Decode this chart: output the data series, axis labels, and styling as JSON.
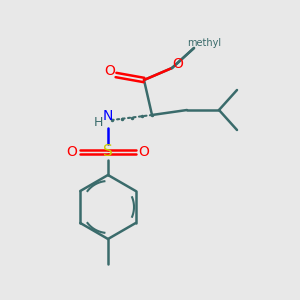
{
  "background_color": "#e8e8e8",
  "bond_color": "#3a6b6b",
  "atom_colors": {
    "O": "#ff0000",
    "N": "#0000ff",
    "S": "#cccc00",
    "C": "#000000",
    "H": "#000000"
  },
  "figsize": [
    3.0,
    3.0
  ],
  "dpi": 100
}
